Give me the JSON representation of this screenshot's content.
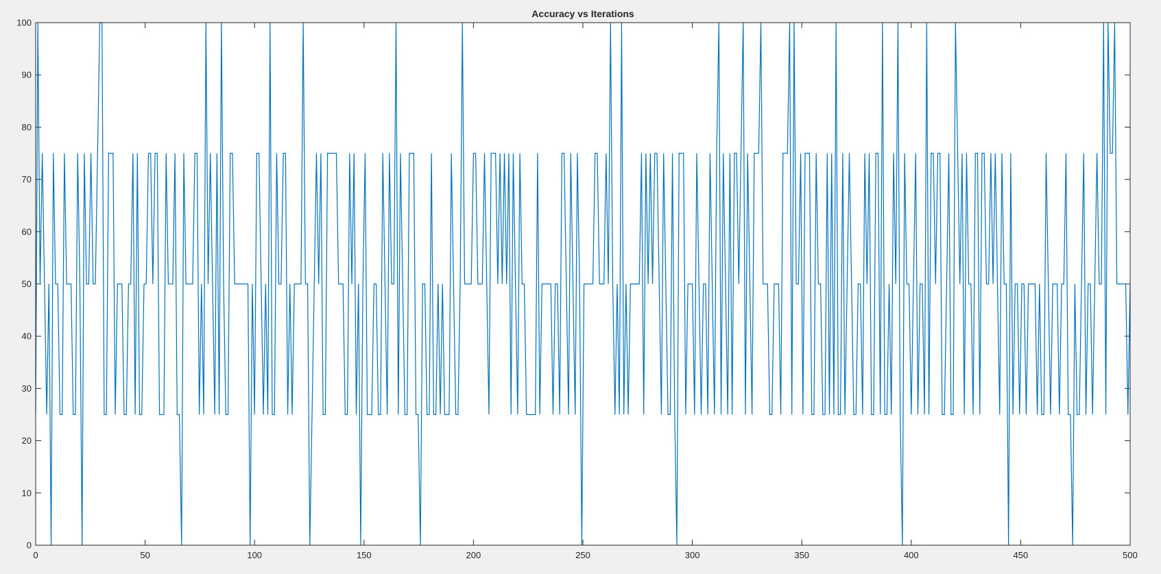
{
  "chart_data": {
    "type": "line",
    "title": "Accuracy vs Iterations",
    "xlabel": "",
    "ylabel": "",
    "xlim": [
      0,
      500
    ],
    "ylim": [
      0,
      100
    ],
    "x_ticks": [
      0,
      50,
      100,
      150,
      200,
      250,
      300,
      350,
      400,
      450,
      500
    ],
    "y_ticks": [
      0,
      10,
      20,
      30,
      40,
      50,
      60,
      70,
      80,
      90,
      100
    ],
    "grid": false,
    "line_color": "#0072BD",
    "background_color": "#f0f0f0",
    "axes_color": "#ffffff",
    "series": [
      {
        "values": [
          25,
          100,
          50,
          75,
          50,
          25,
          50,
          0,
          75,
          50,
          50,
          25,
          25,
          75,
          50,
          50,
          50,
          25,
          25,
          75,
          50,
          0,
          75,
          50,
          50,
          75,
          50,
          50,
          75,
          100,
          100,
          25,
          25,
          75,
          75,
          75,
          25,
          50,
          50,
          50,
          25,
          25,
          50,
          50,
          75,
          25,
          75,
          25,
          25,
          50,
          50,
          75,
          75,
          50,
          75,
          75,
          25,
          25,
          25,
          75,
          50,
          50,
          50,
          75,
          25,
          25,
          0,
          75,
          50,
          50,
          50,
          50,
          75,
          75,
          25,
          50,
          25,
          100,
          50,
          75,
          50,
          25,
          75,
          25,
          100,
          50,
          25,
          25,
          75,
          75,
          50,
          50,
          50,
          50,
          50,
          50,
          50,
          0,
          50,
          25,
          75,
          75,
          50,
          25,
          50,
          25,
          100,
          25,
          25,
          75,
          50,
          50,
          75,
          75,
          25,
          50,
          25,
          50,
          50,
          50,
          50,
          100,
          50,
          50,
          0,
          25,
          50,
          75,
          50,
          75,
          25,
          25,
          75,
          75,
          75,
          75,
          75,
          50,
          50,
          50,
          25,
          25,
          75,
          50,
          75,
          25,
          50,
          0,
          50,
          75,
          25,
          25,
          25,
          50,
          50,
          25,
          25,
          75,
          50,
          25,
          75,
          50,
          50,
          100,
          25,
          75,
          50,
          25,
          25,
          75,
          75,
          75,
          25,
          25,
          0,
          50,
          50,
          25,
          25,
          75,
          25,
          25,
          50,
          25,
          50,
          25,
          25,
          25,
          75,
          50,
          25,
          25,
          50,
          100,
          50,
          50,
          50,
          50,
          75,
          75,
          50,
          50,
          50,
          75,
          50,
          25,
          75,
          75,
          75,
          50,
          75,
          50,
          75,
          50,
          75,
          25,
          75,
          50,
          25,
          75,
          50,
          50,
          25,
          25,
          25,
          25,
          25,
          75,
          25,
          50,
          50,
          50,
          50,
          50,
          25,
          50,
          50,
          25,
          75,
          75,
          50,
          25,
          75,
          50,
          25,
          75,
          50,
          0,
          50,
          50,
          50,
          50,
          50,
          75,
          75,
          50,
          50,
          50,
          75,
          50,
          100,
          50,
          25,
          50,
          25,
          100,
          25,
          50,
          25,
          50,
          50,
          50,
          50,
          50,
          75,
          25,
          75,
          50,
          75,
          50,
          75,
          75,
          50,
          25,
          75,
          50,
          25,
          25,
          75,
          25,
          0,
          75,
          75,
          75,
          25,
          50,
          50,
          50,
          25,
          75,
          50,
          25,
          50,
          50,
          25,
          75,
          50,
          25,
          75,
          100,
          25,
          75,
          50,
          25,
          75,
          25,
          75,
          75,
          50,
          75,
          100,
          25,
          75,
          50,
          25,
          75,
          75,
          75,
          100,
          50,
          50,
          50,
          25,
          25,
          50,
          50,
          50,
          25,
          75,
          75,
          75,
          100,
          25,
          100,
          50,
          50,
          75,
          25,
          75,
          75,
          75,
          25,
          25,
          75,
          50,
          50,
          25,
          25,
          75,
          25,
          75,
          25,
          100,
          25,
          25,
          75,
          25,
          50,
          75,
          50,
          25,
          25,
          50,
          50,
          25,
          75,
          50,
          75,
          25,
          25,
          75,
          75,
          25,
          100,
          25,
          25,
          50,
          25,
          75,
          50,
          100,
          25,
          0,
          75,
          50,
          50,
          25,
          50,
          75,
          25,
          50,
          50,
          25,
          100,
          25,
          75,
          75,
          50,
          75,
          75,
          25,
          25,
          50,
          75,
          25,
          25,
          100,
          75,
          50,
          75,
          25,
          75,
          50,
          50,
          25,
          75,
          75,
          25,
          75,
          75,
          50,
          50,
          75,
          50,
          75,
          50,
          25,
          75,
          50,
          50,
          0,
          75,
          25,
          50,
          50,
          25,
          50,
          50,
          25,
          50,
          50,
          50,
          50,
          25,
          50,
          25,
          25,
          75,
          50,
          25,
          50,
          50,
          50,
          25,
          50,
          50,
          75,
          25,
          25,
          0,
          50,
          25,
          25,
          50,
          75,
          25,
          50,
          50,
          25,
          50,
          75,
          50,
          50,
          100,
          25,
          100,
          75,
          75,
          100,
          50,
          50,
          50,
          50,
          50,
          25,
          50
        ]
      }
    ]
  }
}
